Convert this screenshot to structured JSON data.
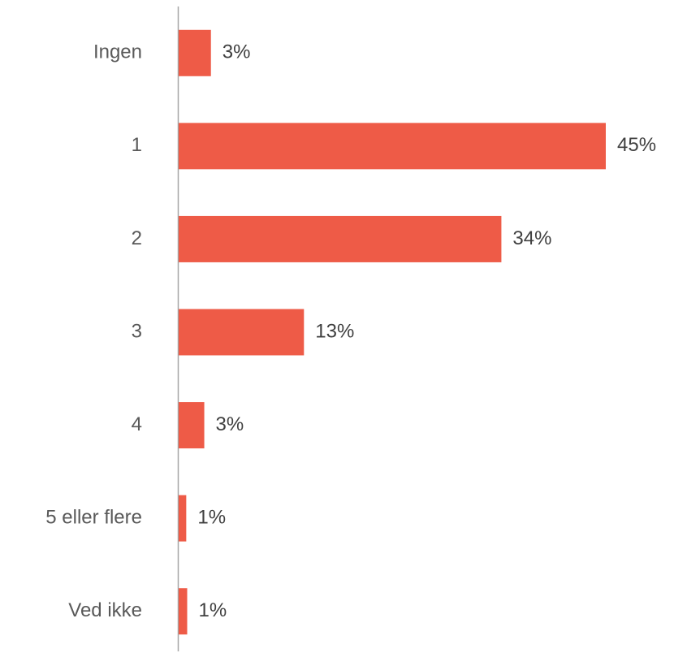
{
  "chart_data": {
    "type": "bar",
    "orientation": "horizontal",
    "categories": [
      "Ingen",
      "1",
      "2",
      "3",
      "4",
      "5 eller flere",
      "Ved ikke"
    ],
    "values": [
      3.4,
      45,
      34,
      13.2,
      2.7,
      0.8,
      0.9
    ],
    "value_labels": [
      "3%",
      "45%",
      "34%",
      "13%",
      "3%",
      "1%",
      "1%"
    ],
    "color": "#ee5b47"
  }
}
